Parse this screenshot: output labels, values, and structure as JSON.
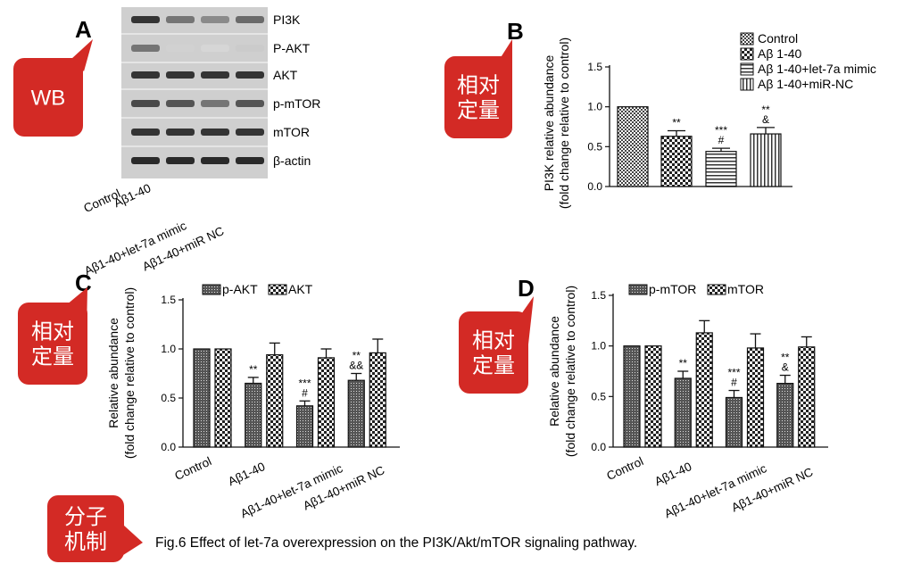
{
  "panel_letters": [
    "A",
    "B",
    "C",
    "D"
  ],
  "callouts": [
    {
      "id": "wb",
      "text": "WB"
    },
    {
      "id": "quant-b",
      "text": "相对\n定量"
    },
    {
      "id": "quant-c",
      "text": "相对\n定量"
    },
    {
      "id": "quant-d",
      "text": "相对\n定量"
    },
    {
      "id": "mechanism",
      "text": "分子\n机制"
    }
  ],
  "caption": "Fig.6 Effect of let-7a overexpression on the PI3K/Akt/mTOR signaling pathway.",
  "western_blot": {
    "bands": [
      "PI3K",
      "P-AKT",
      "AKT",
      "p-mTOR",
      "mTOR",
      "β-actin"
    ],
    "lanes": [
      "Control",
      "Aβ1-40",
      "Aβ1-40+let-7a mimic",
      "Aβ1-40+miR NC"
    ],
    "intensities": [
      [
        0.85,
        0.55,
        0.45,
        0.6
      ],
      [
        0.55,
        0.12,
        0.1,
        0.15
      ],
      [
        0.85,
        0.85,
        0.85,
        0.85
      ],
      [
        0.75,
        0.7,
        0.55,
        0.7
      ],
      [
        0.85,
        0.85,
        0.85,
        0.85
      ],
      [
        0.9,
        0.9,
        0.9,
        0.9
      ]
    ]
  },
  "colors": {
    "bar_stroke": "#111111",
    "callout_red": "#d32a25",
    "axis": "#111111",
    "blot_bg": "#cfcfcf"
  },
  "chart_data": [
    {
      "panel": "B",
      "type": "bar",
      "ylabel": "PI3K relative abundance",
      "ylabel2": "(fold change relative to control)",
      "ylim": [
        0,
        1.5
      ],
      "yticks": [
        "0.0",
        "0.5",
        "1.0",
        "1.5"
      ],
      "legend_position": "top-right",
      "series": [
        {
          "name": "Control",
          "value": 1.0,
          "error": 0,
          "pattern": "dots",
          "marks": []
        },
        {
          "name": "Aβ 1-40",
          "value": 0.63,
          "error": 0.07,
          "pattern": "checker",
          "marks": [
            "**"
          ]
        },
        {
          "name": "Aβ 1-40+let-7a mimic",
          "value": 0.44,
          "error": 0.04,
          "pattern": "hlines",
          "marks": [
            "***",
            "#"
          ]
        },
        {
          "name": "Aβ 1-40+miR-NC",
          "value": 0.66,
          "error": 0.08,
          "pattern": "vlines",
          "marks": [
            "**",
            "&"
          ]
        }
      ]
    },
    {
      "panel": "C",
      "type": "bar",
      "ylabel": "Relative abundance",
      "ylabel2": "(fold change relative to control)",
      "ylim": [
        0,
        1.5
      ],
      "yticks": [
        "0.0",
        "0.5",
        "1.0",
        "1.5"
      ],
      "legend_position": "top",
      "categories": [
        "Control",
        "Aβ1-40",
        "Aβ1-40+let-7a mimic",
        "Aβ1-40+miR NC"
      ],
      "series": [
        {
          "name": "p-AKT",
          "pattern": "dense",
          "values": [
            1.0,
            0.65,
            0.42,
            0.68
          ],
          "errors": [
            0,
            0.06,
            0.05,
            0.07
          ],
          "marks": [
            [],
            [
              "**"
            ],
            [
              "***",
              "#"
            ],
            [
              "**",
              "&&"
            ]
          ]
        },
        {
          "name": "AKT",
          "pattern": "checker",
          "values": [
            1.0,
            0.94,
            0.91,
            0.96
          ],
          "errors": [
            0,
            0.12,
            0.09,
            0.14
          ],
          "marks": [
            [],
            [],
            [],
            []
          ]
        }
      ]
    },
    {
      "panel": "D",
      "type": "bar",
      "ylabel": "Relative abundance",
      "ylabel2": "(fold change relative to control)",
      "ylim": [
        0,
        1.5
      ],
      "yticks": [
        "0.0",
        "0.5",
        "1.0",
        "1.5"
      ],
      "legend_position": "top",
      "categories": [
        "Control",
        "Aβ1-40",
        "Aβ1-40+let-7a mimic",
        "Aβ1-40+miR NC"
      ],
      "series": [
        {
          "name": "p-mTOR",
          "pattern": "dense",
          "values": [
            1.0,
            0.68,
            0.49,
            0.63
          ],
          "errors": [
            0,
            0.07,
            0.07,
            0.08
          ],
          "marks": [
            [],
            [
              "**"
            ],
            [
              "***",
              "#"
            ],
            [
              "**",
              "&"
            ]
          ]
        },
        {
          "name": "mTOR",
          "pattern": "checker",
          "values": [
            1.0,
            1.13,
            0.98,
            0.99
          ],
          "errors": [
            0,
            0.12,
            0.14,
            0.1
          ],
          "marks": [
            [],
            [],
            [],
            []
          ]
        }
      ]
    }
  ]
}
